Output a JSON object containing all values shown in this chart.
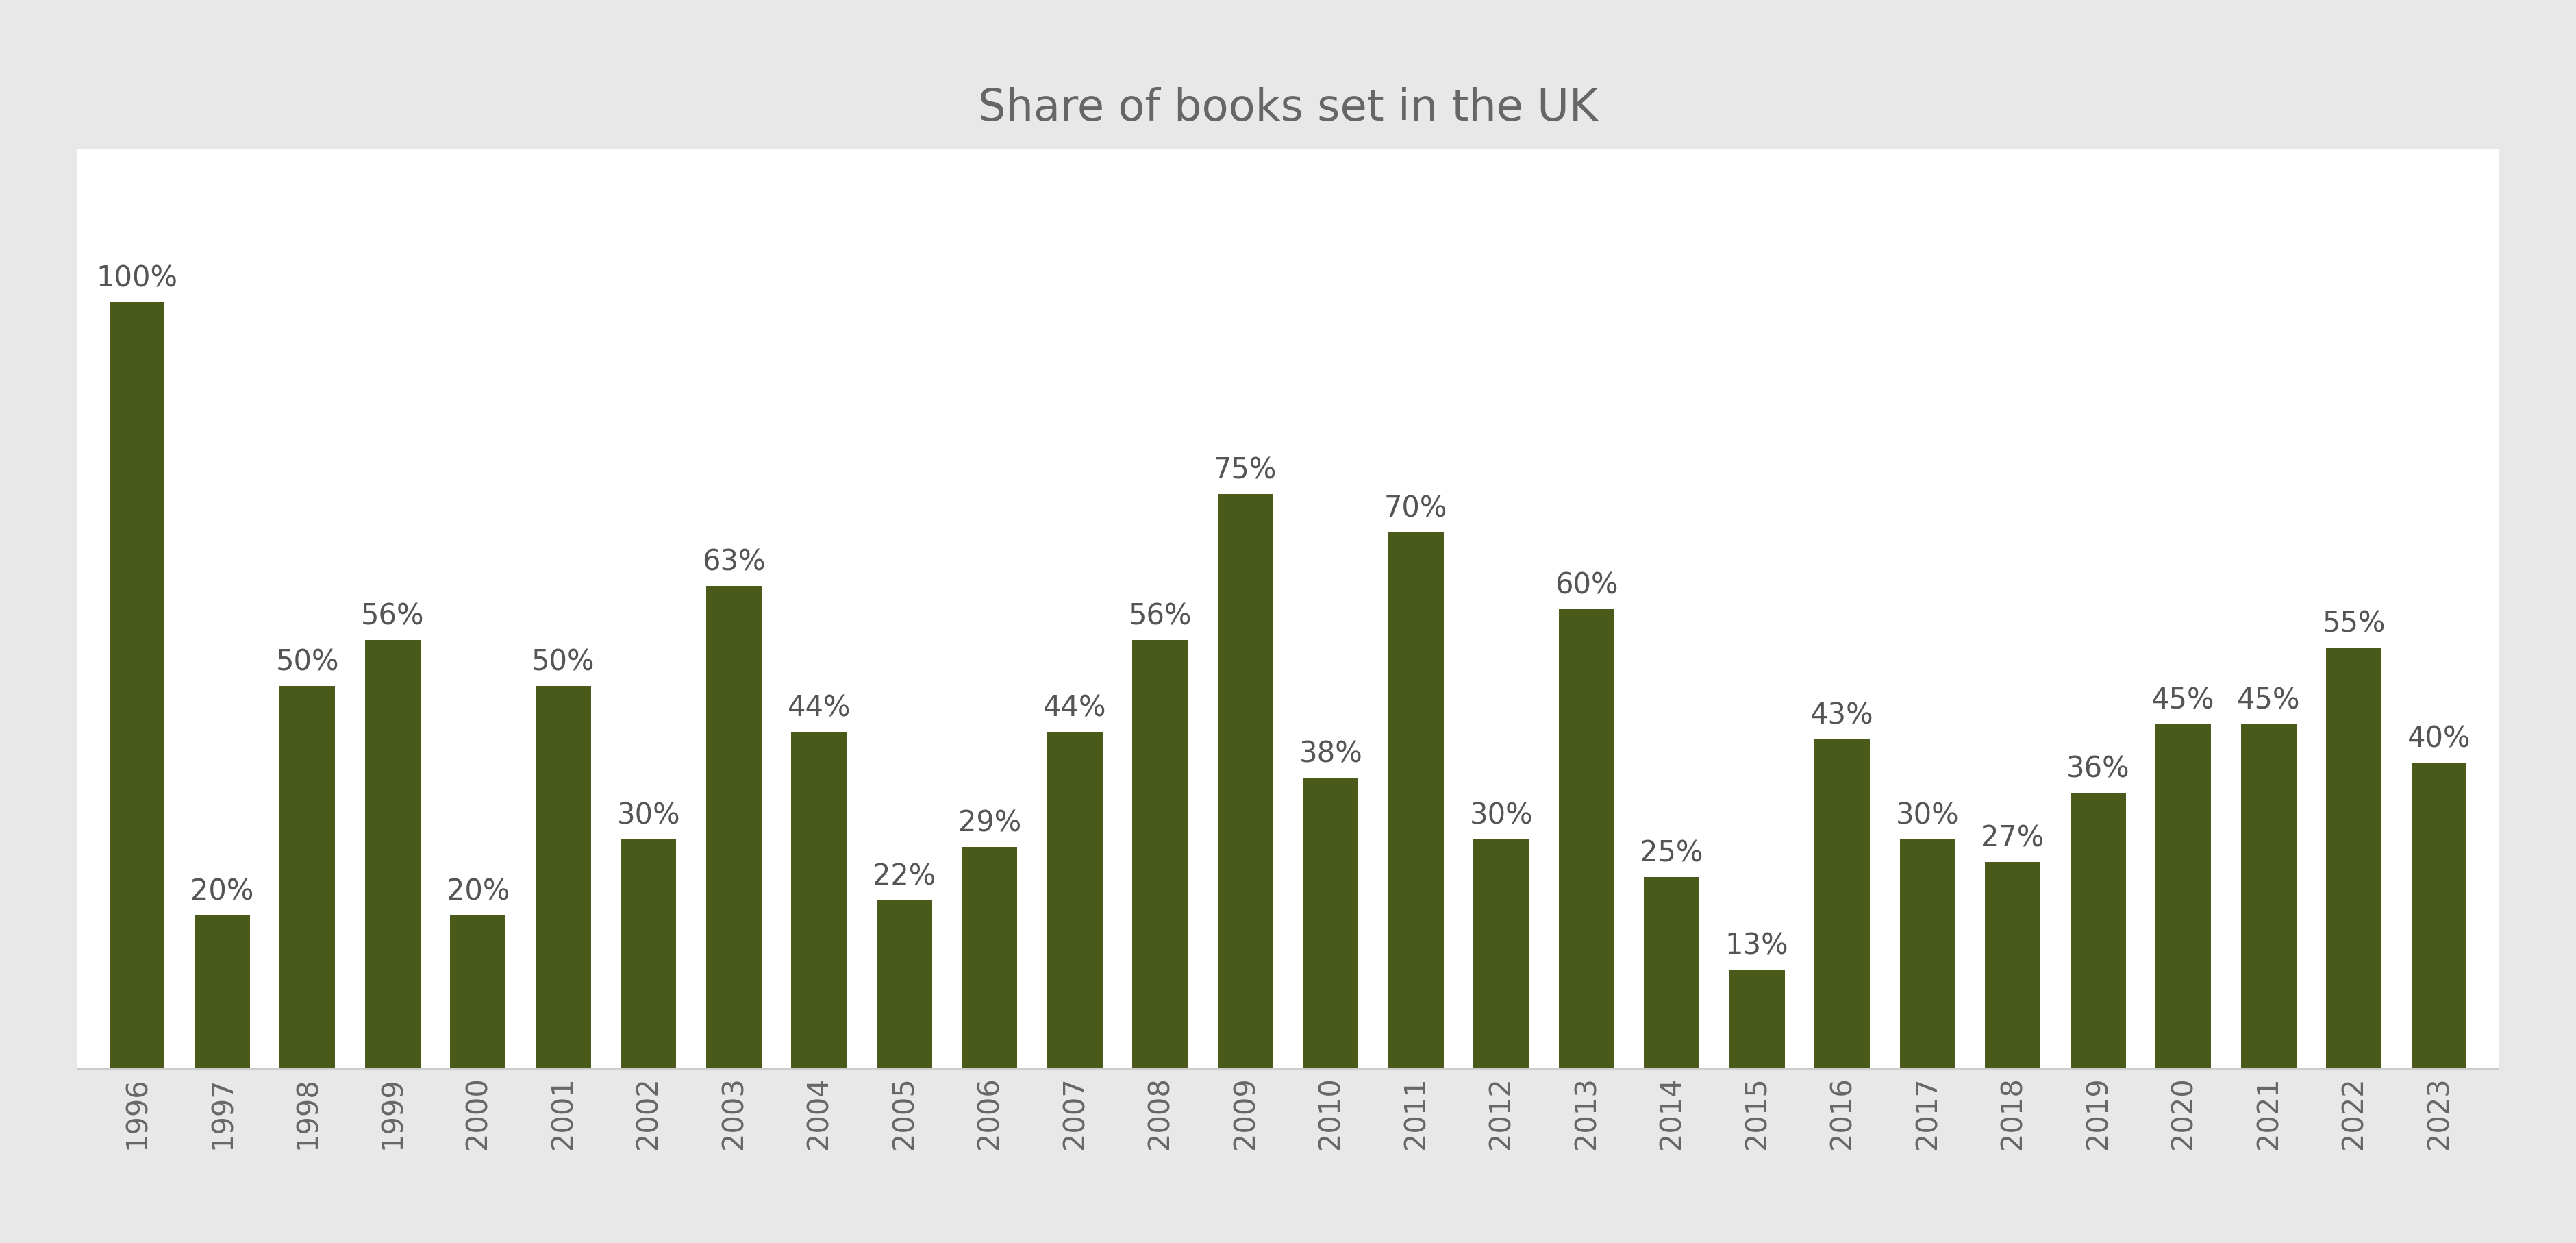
{
  "title": "Share of books set in the UK",
  "categories": [
    "1996",
    "1997",
    "1998",
    "1999",
    "2000",
    "2001",
    "2002",
    "2003",
    "2004",
    "2005",
    "2006",
    "2007",
    "2008",
    "2009",
    "2010",
    "2011",
    "2012",
    "2013",
    "2014",
    "2015",
    "2016",
    "2017",
    "2018",
    "2019",
    "2020",
    "2021",
    "2022",
    "2023"
  ],
  "values": [
    100,
    20,
    50,
    56,
    20,
    50,
    30,
    63,
    44,
    22,
    29,
    44,
    56,
    75,
    38,
    70,
    30,
    60,
    25,
    13,
    43,
    30,
    27,
    36,
    45,
    45,
    55,
    40
  ],
  "bar_color": "#4a5a1a",
  "figure_bg_color": "#e8e8e8",
  "axes_bg_color": "#ffffff",
  "title_fontsize": 46,
  "label_fontsize": 30,
  "tick_fontsize": 30,
  "ylim": [
    0,
    120
  ],
  "bar_width": 0.65,
  "title_color": "#666666",
  "tick_color": "#666666",
  "label_color": "#555555"
}
